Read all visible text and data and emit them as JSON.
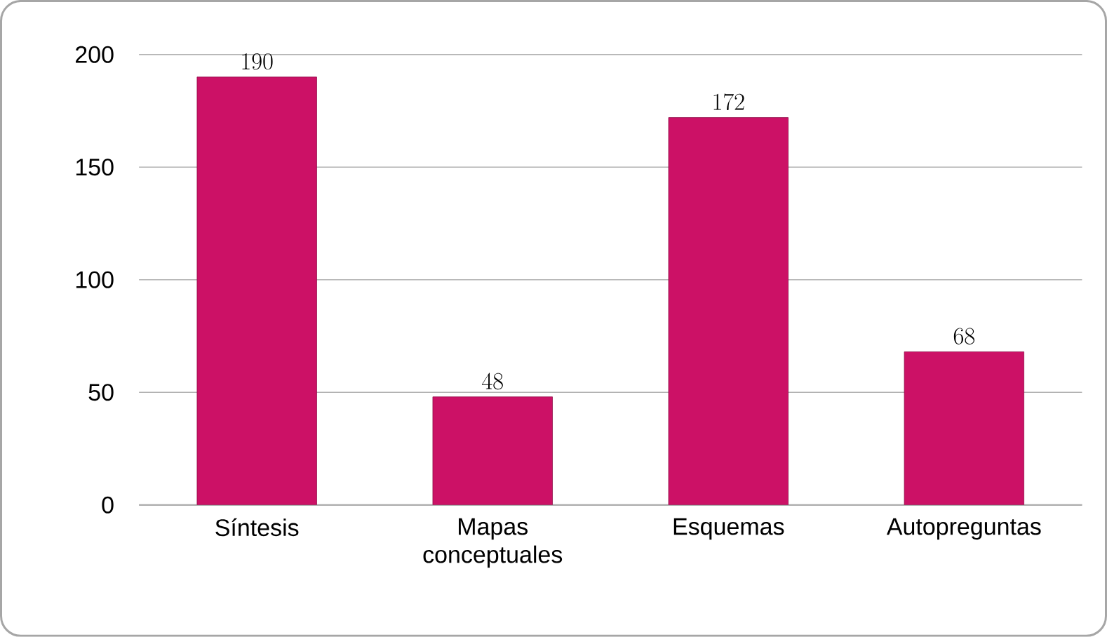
{
  "chart_data": {
    "type": "bar",
    "categories": [
      "Síntesis",
      "Mapas conceptuales",
      "Esquemas",
      "Autopreguntas"
    ],
    "values": [
      190,
      48,
      172,
      68
    ],
    "color": "#cc1166",
    "ylim": [
      0,
      200
    ],
    "yticks": [
      0,
      50,
      100,
      150,
      200
    ],
    "grid": "y",
    "data_labels": true
  }
}
